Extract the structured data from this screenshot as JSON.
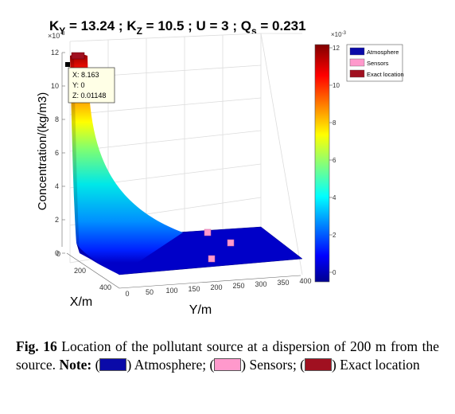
{
  "chart_data": {
    "type": "surface",
    "title": {
      "K_sym": "K",
      "K_y_sub": "Y",
      "k_y_text": " = 13.24  ; ",
      "K_z_sub": "Z",
      "k_z_text": " = 10.5  ; U = 3 ; ",
      "Q_sym": "Q",
      "Q_sub": "s",
      "q_text": " = 0.231"
    },
    "xlabel": "Y/m",
    "ylabel": "X/m",
    "zlabel": "Concentration/(kg/m3)",
    "z_multiplier": "×10",
    "z_exponent": "-3",
    "x_ticks": [
      "0",
      "50",
      "100",
      "150",
      "200",
      "250",
      "300",
      "350",
      "400"
    ],
    "y_ticks": [
      "0",
      "200",
      "400"
    ],
    "z_ticks": [
      "0",
      "2",
      "4",
      "6",
      "8",
      "10",
      "12"
    ],
    "xlim": [
      0,
      400
    ],
    "ylim": [
      0,
      400
    ],
    "zlim": [
      0,
      12
    ],
    "colorbar": {
      "colormap": "jet",
      "range": [
        0,
        12
      ],
      "ticks": [
        "0",
        "2",
        "4",
        "6",
        "8",
        "10",
        "12"
      ],
      "multiplier": "×10",
      "exponent": "-3"
    },
    "legend": {
      "placement": "top-right",
      "entries": [
        {
          "label": "Atmosphere",
          "color": "#0a0aa8"
        },
        {
          "label": "Sensors",
          "color": "#ff99cc"
        },
        {
          "label": "Exact location",
          "color": "#a01020"
        }
      ]
    },
    "surface_profile": [
      {
        "x": 0,
        "z": 11.5
      },
      {
        "x": 25,
        "z": 5.0
      },
      {
        "x": 50,
        "z": 2.2
      },
      {
        "x": 75,
        "z": 1.0
      },
      {
        "x": 100,
        "z": 0.4
      },
      {
        "x": 150,
        "z": 0.15
      },
      {
        "x": 200,
        "z": 0.05
      },
      {
        "x": 400,
        "z": 0.0
      }
    ],
    "sensors": [
      {
        "x": 250,
        "y": 140,
        "z": 0
      },
      {
        "x": 300,
        "y": 250,
        "z": 0
      },
      {
        "x": 240,
        "y": 330,
        "z": 0
      }
    ],
    "exact_location": {
      "x": 0,
      "y": 0,
      "z": 11.8
    },
    "datatip": {
      "x_line": "X: 8.163",
      "y_line": "Y: 0",
      "z_line": "Z: 0.01148"
    }
  },
  "caption": {
    "fig_label": "Fig.",
    "fig_number": "16",
    "text": " Location of the pollutant source at a dispersion of 200 m from the source. ",
    "note_label": "Note:",
    "open_paren": " (",
    "close_paren": ")",
    "atmosphere": " Atmosphere;",
    "sensors": " Sensors; (",
    "exact": " Exact location",
    "color_atmosphere": "#0a0aa8",
    "color_sensors": "#ff99cc",
    "color_exact": "#a01020"
  }
}
